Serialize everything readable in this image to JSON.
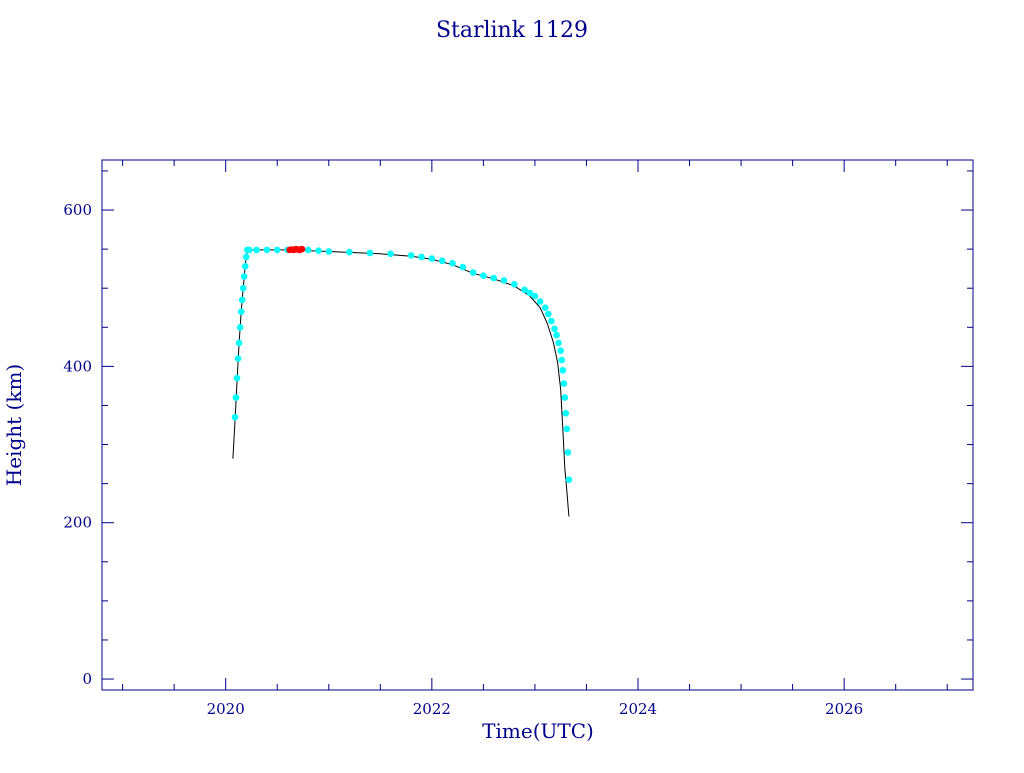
{
  "chart_data": {
    "type": "scatter",
    "title": "Starlink 1129",
    "xlabel": "Time(UTC)",
    "ylabel": "Height (km)",
    "xlim": [
      2018.8,
      2027.25
    ],
    "ylim": [
      -14,
      664
    ],
    "x_ticks": [
      2020,
      2022,
      2024,
      2026
    ],
    "x_tick_labels": [
      "2020",
      "2022",
      "2024",
      "2026"
    ],
    "y_ticks": [
      0,
      200,
      400,
      600
    ],
    "y_tick_labels": [
      "0",
      "200",
      "400",
      "600"
    ],
    "grid": false,
    "legend": "none",
    "colors": {
      "axes": "#00008b",
      "text": "#00008b",
      "line": "#000000",
      "points": "#00ffff",
      "highlight": "#ff0000"
    },
    "series": [
      {
        "marker": "line",
        "x": [
          2020.07,
          2020.09,
          2020.11,
          2020.13,
          2020.15,
          2020.17,
          2020.19,
          2020.21,
          2020.24,
          2020.6,
          2021.0,
          2021.5,
          2021.8,
          2022.0,
          2022.2,
          2022.4,
          2022.6,
          2022.8,
          2022.95,
          2023.05,
          2023.12,
          2023.18,
          2023.22,
          2023.25,
          2023.27,
          2023.29,
          2023.31,
          2023.33
        ],
        "y": [
          282,
          330,
          380,
          430,
          470,
          500,
          530,
          549,
          549,
          549,
          547,
          544,
          541,
          537,
          530,
          519,
          512,
          503,
          490,
          475,
          455,
          430,
          405,
          370,
          320,
          270,
          240,
          208
        ]
      },
      {
        "marker": "point",
        "x": [
          2020.09,
          2020.1,
          2020.11,
          2020.12,
          2020.13,
          2020.14,
          2020.15,
          2020.16,
          2020.17,
          2020.18,
          2020.19,
          2020.2,
          2020.21,
          2020.23,
          2020.3,
          2020.4,
          2020.5,
          2020.6,
          2020.8,
          2020.9,
          2021.0,
          2021.2,
          2021.4,
          2021.6,
          2021.8,
          2021.9,
          2022.0,
          2022.1,
          2022.2,
          2022.3,
          2022.4,
          2022.5,
          2022.6,
          2022.7,
          2022.8,
          2022.9,
          2022.95,
          2023.0,
          2023.05,
          2023.1,
          2023.13,
          2023.16,
          2023.19,
          2023.21,
          2023.23,
          2023.25,
          2023.26,
          2023.27,
          2023.28,
          2023.29,
          2023.3,
          2023.31,
          2023.32,
          2023.33
        ],
        "y": [
          335,
          360,
          385,
          410,
          430,
          450,
          470,
          485,
          500,
          515,
          528,
          540,
          549,
          549,
          549,
          549,
          549,
          549,
          549,
          548,
          547,
          546,
          545,
          544,
          542,
          540,
          538,
          535,
          532,
          527,
          520,
          516,
          513,
          510,
          505,
          498,
          494,
          490,
          483,
          475,
          467,
          458,
          448,
          440,
          430,
          420,
          408,
          395,
          378,
          360,
          340,
          320,
          290,
          255
        ]
      },
      {
        "marker": "point-highlight",
        "x": [
          2020.62,
          2020.64,
          2020.66,
          2020.68,
          2020.7,
          2020.72,
          2020.74
        ],
        "y": [
          549,
          549.5,
          549,
          550,
          549.5,
          549,
          550
        ]
      }
    ]
  }
}
